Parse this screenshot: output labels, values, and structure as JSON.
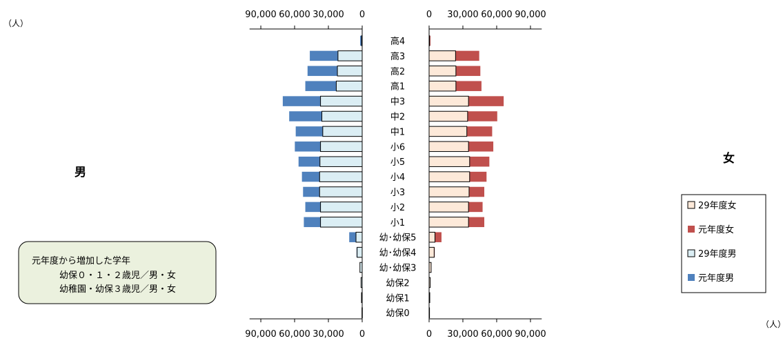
{
  "chart_data": {
    "type": "bar",
    "orientation": "horizontal",
    "layout": "population-pyramid",
    "unit": "（人）",
    "side_labels": {
      "male": "男",
      "female": "女"
    },
    "categories": [
      "高4",
      "高3",
      "高2",
      "高1",
      "中3",
      "中2",
      "中1",
      "小6",
      "小5",
      "小4",
      "小3",
      "小2",
      "小1",
      "幼･幼保5",
      "幼･幼保4",
      "幼･幼保3",
      "幼保2",
      "幼保1",
      "幼保0"
    ],
    "series": [
      {
        "name": "元年度男",
        "side": "male",
        "color": "#4f81bd",
        "values": [
          1800,
          46500,
          48500,
          50500,
          70500,
          64800,
          59000,
          59800,
          56500,
          53500,
          52500,
          50500,
          51800,
          11500,
          5000,
          2000,
          1000,
          700,
          300
        ]
      },
      {
        "name": "29年度男",
        "side": "male",
        "color": "#dbeef4",
        "values": [
          500,
          21500,
          22000,
          23000,
          37000,
          35800,
          35000,
          37000,
          37500,
          37800,
          37800,
          37000,
          37000,
          5500,
          4500,
          2000,
          1000,
          600,
          200
        ]
      },
      {
        "name": "元年度女",
        "side": "female",
        "color": "#c0504d",
        "values": [
          1200,
          44500,
          45500,
          46500,
          66200,
          60500,
          56000,
          57000,
          53500,
          51000,
          49000,
          47500,
          49000,
          11000,
          5000,
          2000,
          1000,
          700,
          300
        ]
      },
      {
        "name": "29年度女",
        "side": "female",
        "color": "#fde9d9",
        "values": [
          400,
          23500,
          23800,
          23800,
          35000,
          34200,
          33500,
          35000,
          36000,
          36000,
          35500,
          35000,
          35000,
          5200,
          4500,
          1800,
          1000,
          600,
          200
        ]
      }
    ],
    "x_ticks": [
      "90,000",
      "60,000",
      "30,000",
      "0"
    ],
    "x_tick_values": [
      90000,
      60000,
      30000,
      0
    ],
    "xlim": [
      0,
      100000
    ],
    "grid": false,
    "legend": {
      "position": "right",
      "items": [
        "29年度女",
        "元年度女",
        "29年度男",
        "元年度男"
      ]
    },
    "annotation": {
      "lines": [
        "元年度から増加した学年",
        "幼保０・１・２歳児／男・女",
        "幼稚園・幼保３歳児／男・女"
      ]
    }
  }
}
